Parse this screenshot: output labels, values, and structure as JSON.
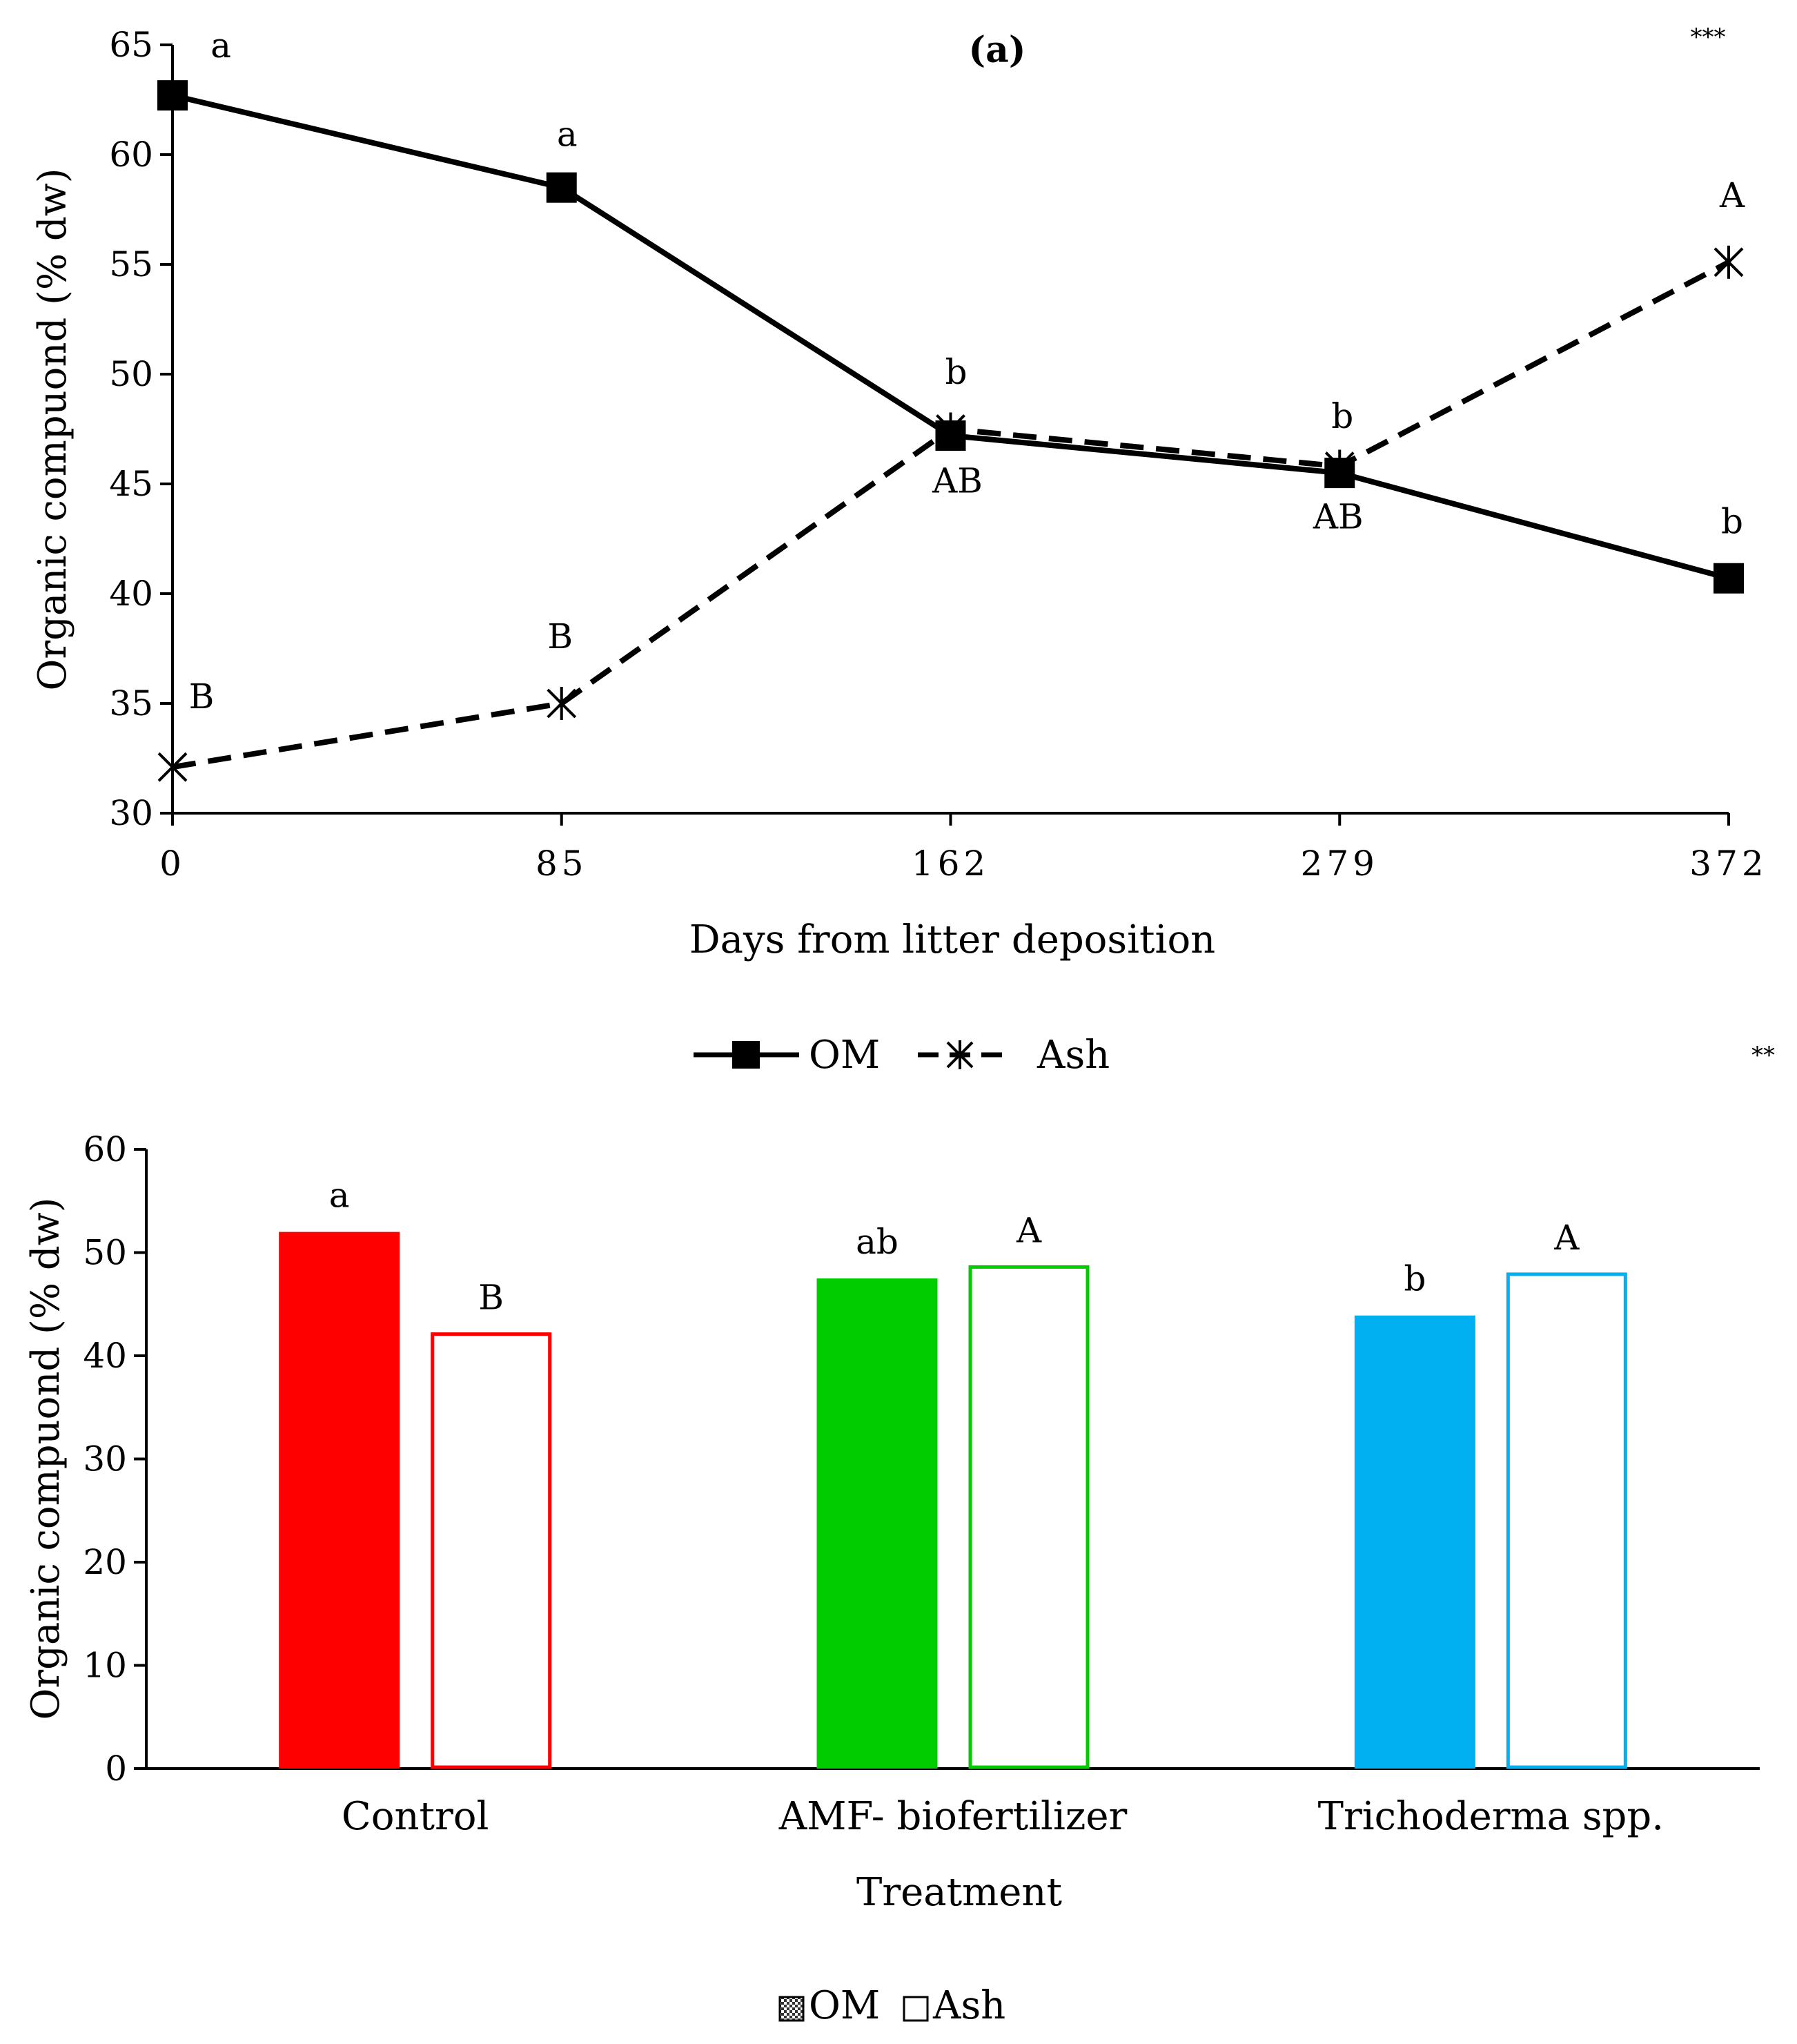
{
  "chart_data": [
    {
      "type": "line",
      "panel_label": "(a)",
      "significance": "***",
      "xlabel": "Days from litter deposition",
      "ylabel": "Organic compuond (% dw)",
      "x": [
        "0",
        "85",
        "162",
        "279",
        "372"
      ],
      "ylim": [
        30,
        65
      ],
      "yticks": [
        "30",
        "35",
        "40",
        "45",
        "50",
        "55",
        "60",
        "65"
      ],
      "series": [
        {
          "name": "OM",
          "style": "solid",
          "marker": "square",
          "color": "#000000",
          "values": [
            62.7,
            58.5,
            47.2,
            45.5,
            40.7
          ],
          "letters": [
            "a",
            "a",
            "b",
            "b",
            "b"
          ]
        },
        {
          "name": "Ash",
          "style": "dashed",
          "marker": "asterisk",
          "color": "#000000",
          "values": [
            32.1,
            35.0,
            47.5,
            45.8,
            55.1
          ],
          "letters": [
            "B",
            "B",
            "AB",
            "AB",
            "A"
          ]
        }
      ],
      "legend": [
        {
          "label": "OM"
        },
        {
          "label": "Ash"
        }
      ]
    },
    {
      "type": "bar",
      "significance": "**",
      "xlabel": "Treatment",
      "ylabel": "Organic compuond (% dw)",
      "categories": [
        "Control",
        "AMF- biofertilizer",
        "Trichoderma spp."
      ],
      "ylim": [
        0,
        60
      ],
      "yticks": [
        "0",
        "10",
        "20",
        "30",
        "40",
        "50",
        "60"
      ],
      "colors": [
        "#ff0000",
        "#00cc00",
        "#00b0f0"
      ],
      "series": [
        {
          "name": "OM",
          "fill": "solid",
          "values": [
            52.0,
            47.5,
            43.9
          ],
          "letters": [
            "a",
            "ab",
            "b"
          ]
        },
        {
          "name": "Ash",
          "fill": "none",
          "values": [
            42.1,
            48.6,
            47.9
          ],
          "letters": [
            "B",
            "A",
            "A"
          ]
        }
      ],
      "legend": [
        {
          "label": "OM"
        },
        {
          "label": "Ash"
        }
      ]
    }
  ]
}
